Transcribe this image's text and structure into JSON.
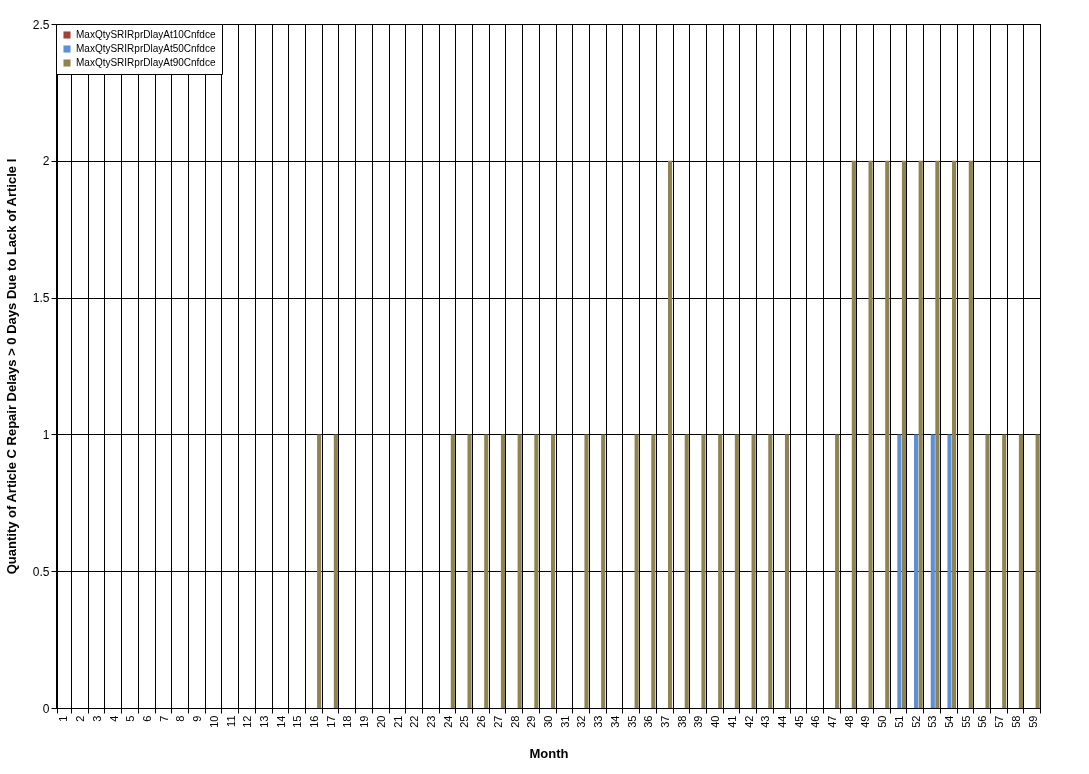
{
  "chart_data": {
    "type": "bar",
    "xlabel": "Month",
    "ylabel": "Quantity of Article C Repair Delays  > 0 Days Due to Lack of Article I",
    "categories": [
      "1",
      "2",
      "3",
      "4",
      "5",
      "6",
      "7",
      "8",
      "9",
      "10",
      "11",
      "12",
      "13",
      "14",
      "15",
      "16",
      "17",
      "18",
      "19",
      "20",
      "21",
      "22",
      "23",
      "24",
      "25",
      "26",
      "27",
      "28",
      "29",
      "30",
      "31",
      "32",
      "33",
      "34",
      "35",
      "36",
      "37",
      "38",
      "39",
      "40",
      "41",
      "42",
      "43",
      "44",
      "45",
      "46",
      "47",
      "48",
      "49",
      "50",
      "51",
      "52",
      "53",
      "54",
      "55",
      "56",
      "57",
      "58",
      "59"
    ],
    "series": [
      {
        "name": "MaxQtySRIRprDlayAt10Cnfdce",
        "color": "#a0413c",
        "values": [
          0,
          0,
          0,
          0,
          0,
          0,
          0,
          0,
          0,
          0,
          0,
          0,
          0,
          0,
          0,
          0,
          0,
          0,
          0,
          0,
          0,
          0,
          0,
          0,
          0,
          0,
          0,
          0,
          0,
          0,
          0,
          0,
          0,
          0,
          0,
          0,
          0,
          0,
          0,
          0,
          0,
          0,
          0,
          0,
          0,
          0,
          0,
          0,
          0,
          0,
          0,
          0,
          0,
          0,
          0,
          0,
          0,
          0,
          0
        ]
      },
      {
        "name": "MaxQtySRIRprDlayAt50Cnfdce",
        "color": "#5b8fd6",
        "values": [
          0,
          0,
          0,
          0,
          0,
          0,
          0,
          0,
          0,
          0,
          0,
          0,
          0,
          0,
          0,
          0,
          0,
          0,
          0,
          0,
          0,
          0,
          0,
          0,
          0,
          0,
          0,
          0,
          0,
          0,
          0,
          0,
          0,
          0,
          0,
          0,
          0,
          0,
          0,
          0,
          0,
          0,
          0,
          0,
          0,
          0,
          0,
          0,
          0,
          0,
          1,
          1,
          1,
          1,
          0,
          0,
          0,
          0,
          0
        ]
      },
      {
        "name": "MaxQtySRIRprDlayAt90Cnfdce",
        "color": "#8f8450",
        "values": [
          0,
          0,
          0,
          0,
          0,
          0,
          0,
          0,
          0,
          0,
          0,
          0,
          0,
          0,
          0,
          1,
          1,
          0,
          0,
          0,
          0,
          0,
          0,
          1,
          1,
          1,
          1,
          1,
          1,
          1,
          0,
          1,
          1,
          0,
          1,
          1,
          2,
          1,
          1,
          1,
          1,
          1,
          1,
          1,
          0,
          0,
          1,
          2,
          2,
          2,
          2,
          2,
          2,
          2,
          2,
          1,
          1,
          1,
          1
        ]
      }
    ],
    "ylim": [
      0,
      2.5
    ],
    "yticks": [
      0,
      0.5,
      1,
      1.5,
      2,
      2.5
    ],
    "grid": true,
    "legend": "top left"
  }
}
